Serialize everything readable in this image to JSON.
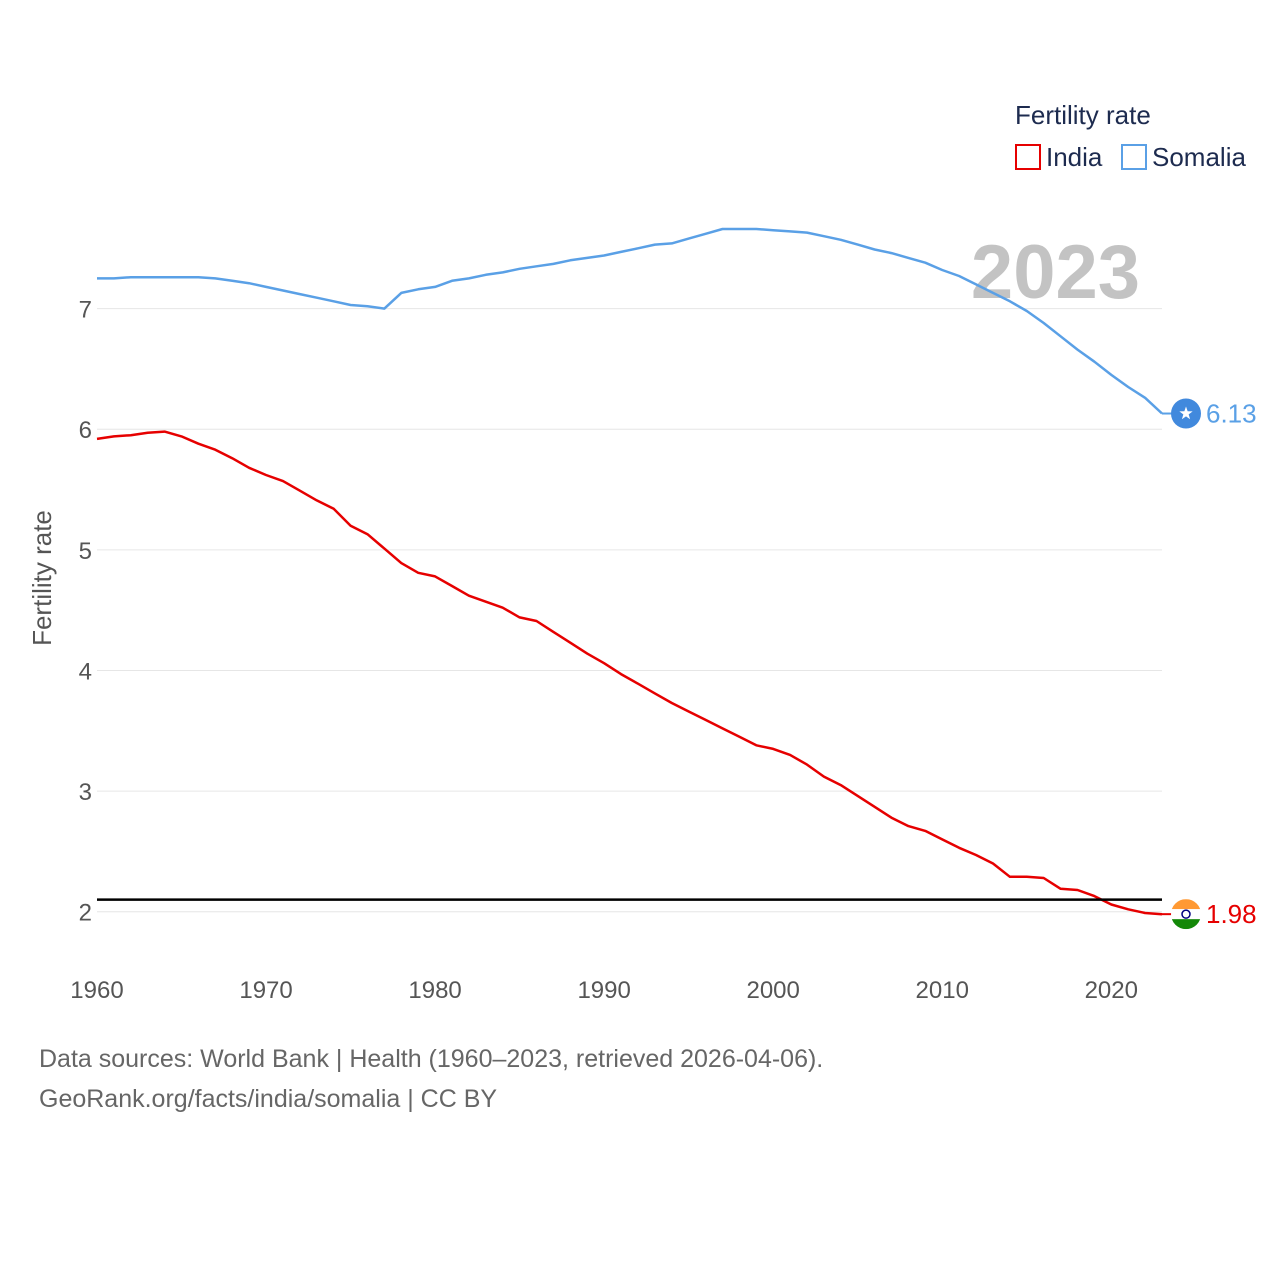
{
  "chart_data": {
    "type": "line",
    "title": "",
    "xlabel": "",
    "ylabel": "Fertility rate",
    "xlim": [
      1960,
      2023
    ],
    "ylim": [
      1.6,
      7.9
    ],
    "xticks": [
      1960,
      1970,
      1980,
      1990,
      2000,
      2010,
      2020
    ],
    "yticks": [
      2,
      3,
      4,
      5,
      6,
      7
    ],
    "year_label": "2023",
    "reference_line": 2.1,
    "legend": {
      "title": "Fertility rate",
      "position": "top-right"
    },
    "series": [
      {
        "name": "India",
        "color": "#e60000",
        "end_label": "1.98",
        "flag": "india-flag",
        "x": [
          1960,
          1961,
          1962,
          1963,
          1964,
          1965,
          1966,
          1967,
          1968,
          1969,
          1970,
          1971,
          1972,
          1973,
          1974,
          1975,
          1976,
          1977,
          1978,
          1979,
          1980,
          1981,
          1982,
          1983,
          1984,
          1985,
          1986,
          1987,
          1988,
          1989,
          1990,
          1991,
          1992,
          1993,
          1994,
          1995,
          1996,
          1997,
          1998,
          1999,
          2000,
          2001,
          2002,
          2003,
          2004,
          2005,
          2006,
          2007,
          2008,
          2009,
          2010,
          2011,
          2012,
          2013,
          2014,
          2015,
          2016,
          2017,
          2018,
          2019,
          2020,
          2021,
          2022,
          2023
        ],
        "values": [
          5.92,
          5.94,
          5.95,
          5.97,
          5.98,
          5.94,
          5.88,
          5.83,
          5.76,
          5.68,
          5.62,
          5.57,
          5.49,
          5.41,
          5.34,
          5.2,
          5.13,
          5.01,
          4.89,
          4.81,
          4.78,
          4.7,
          4.62,
          4.57,
          4.52,
          4.44,
          4.41,
          4.32,
          4.23,
          4.14,
          4.06,
          3.97,
          3.89,
          3.81,
          3.73,
          3.66,
          3.59,
          3.52,
          3.45,
          3.38,
          3.35,
          3.3,
          3.22,
          3.12,
          3.05,
          2.96,
          2.87,
          2.78,
          2.71,
          2.67,
          2.6,
          2.53,
          2.47,
          2.4,
          2.29,
          2.29,
          2.28,
          2.19,
          2.18,
          2.13,
          2.06,
          2.02,
          1.99,
          1.98
        ]
      },
      {
        "name": "Somalia",
        "color": "#5aa0e6",
        "end_label": "6.13",
        "flag": "somalia-flag",
        "x": [
          1960,
          1961,
          1962,
          1963,
          1964,
          1965,
          1966,
          1967,
          1968,
          1969,
          1970,
          1971,
          1972,
          1973,
          1974,
          1975,
          1976,
          1977,
          1978,
          1979,
          1980,
          1981,
          1982,
          1983,
          1984,
          1985,
          1986,
          1987,
          1988,
          1989,
          1990,
          1991,
          1992,
          1993,
          1994,
          1995,
          1996,
          1997,
          1998,
          1999,
          2000,
          2001,
          2002,
          2003,
          2004,
          2005,
          2006,
          2007,
          2008,
          2009,
          2010,
          2011,
          2012,
          2013,
          2014,
          2015,
          2016,
          2017,
          2018,
          2019,
          2020,
          2021,
          2022,
          2023
        ],
        "values": [
          7.25,
          7.25,
          7.26,
          7.26,
          7.26,
          7.26,
          7.26,
          7.25,
          7.23,
          7.21,
          7.18,
          7.15,
          7.12,
          7.09,
          7.06,
          7.03,
          7.02,
          7.0,
          7.13,
          7.16,
          7.18,
          7.23,
          7.25,
          7.28,
          7.3,
          7.33,
          7.35,
          7.37,
          7.4,
          7.42,
          7.44,
          7.47,
          7.5,
          7.53,
          7.54,
          7.58,
          7.62,
          7.66,
          7.66,
          7.66,
          7.65,
          7.64,
          7.63,
          7.6,
          7.57,
          7.53,
          7.49,
          7.46,
          7.42,
          7.38,
          7.32,
          7.27,
          7.2,
          7.13,
          7.06,
          6.98,
          6.88,
          6.77,
          6.66,
          6.56,
          6.45,
          6.35,
          6.26,
          6.13
        ]
      }
    ]
  },
  "footer": {
    "source_line": "Data sources: World Bank | Health (1960–2023, retrieved 2026-04-06).",
    "url_line": "GeoRank.org/facts/india/somalia | CC BY"
  }
}
